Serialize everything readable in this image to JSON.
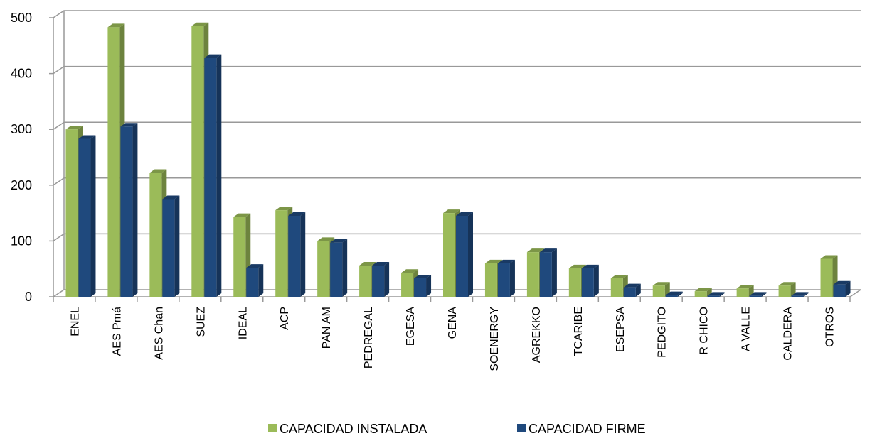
{
  "chart_data": {
    "type": "bar3d",
    "categories": [
      "ENEL",
      "AES Pmá",
      "AES Chan",
      "SUEZ",
      "IDEAL",
      "ACP",
      "PAN AM",
      "PEDREGAL",
      "EGESA",
      "GENA",
      "SOENERGY",
      "AGREKKO",
      "TCARIBE",
      "ESEPSA",
      "PEDGITO",
      "R CHICO",
      "A VALLE",
      "CALDERA",
      "OTROS"
    ],
    "series": [
      {
        "name": "CAPACIDAD INSTALADA",
        "color": "#9bbb59",
        "values": [
          300,
          483,
          222,
          485,
          143,
          155,
          100,
          56,
          43,
          150,
          60,
          80,
          51,
          33,
          20,
          10,
          15,
          20,
          68
        ]
      },
      {
        "name": "CAPACIDAD FIRME",
        "color": "#1f497d",
        "values": [
          283,
          305,
          175,
          428,
          52,
          145,
          97,
          56,
          33,
          145,
          60,
          80,
          51,
          17,
          3,
          2,
          2,
          2,
          22
        ]
      }
    ],
    "ylim": [
      0,
      500
    ],
    "yticks": [
      0,
      100,
      200,
      300,
      400,
      500
    ],
    "grid": true,
    "legend": "bottom"
  }
}
